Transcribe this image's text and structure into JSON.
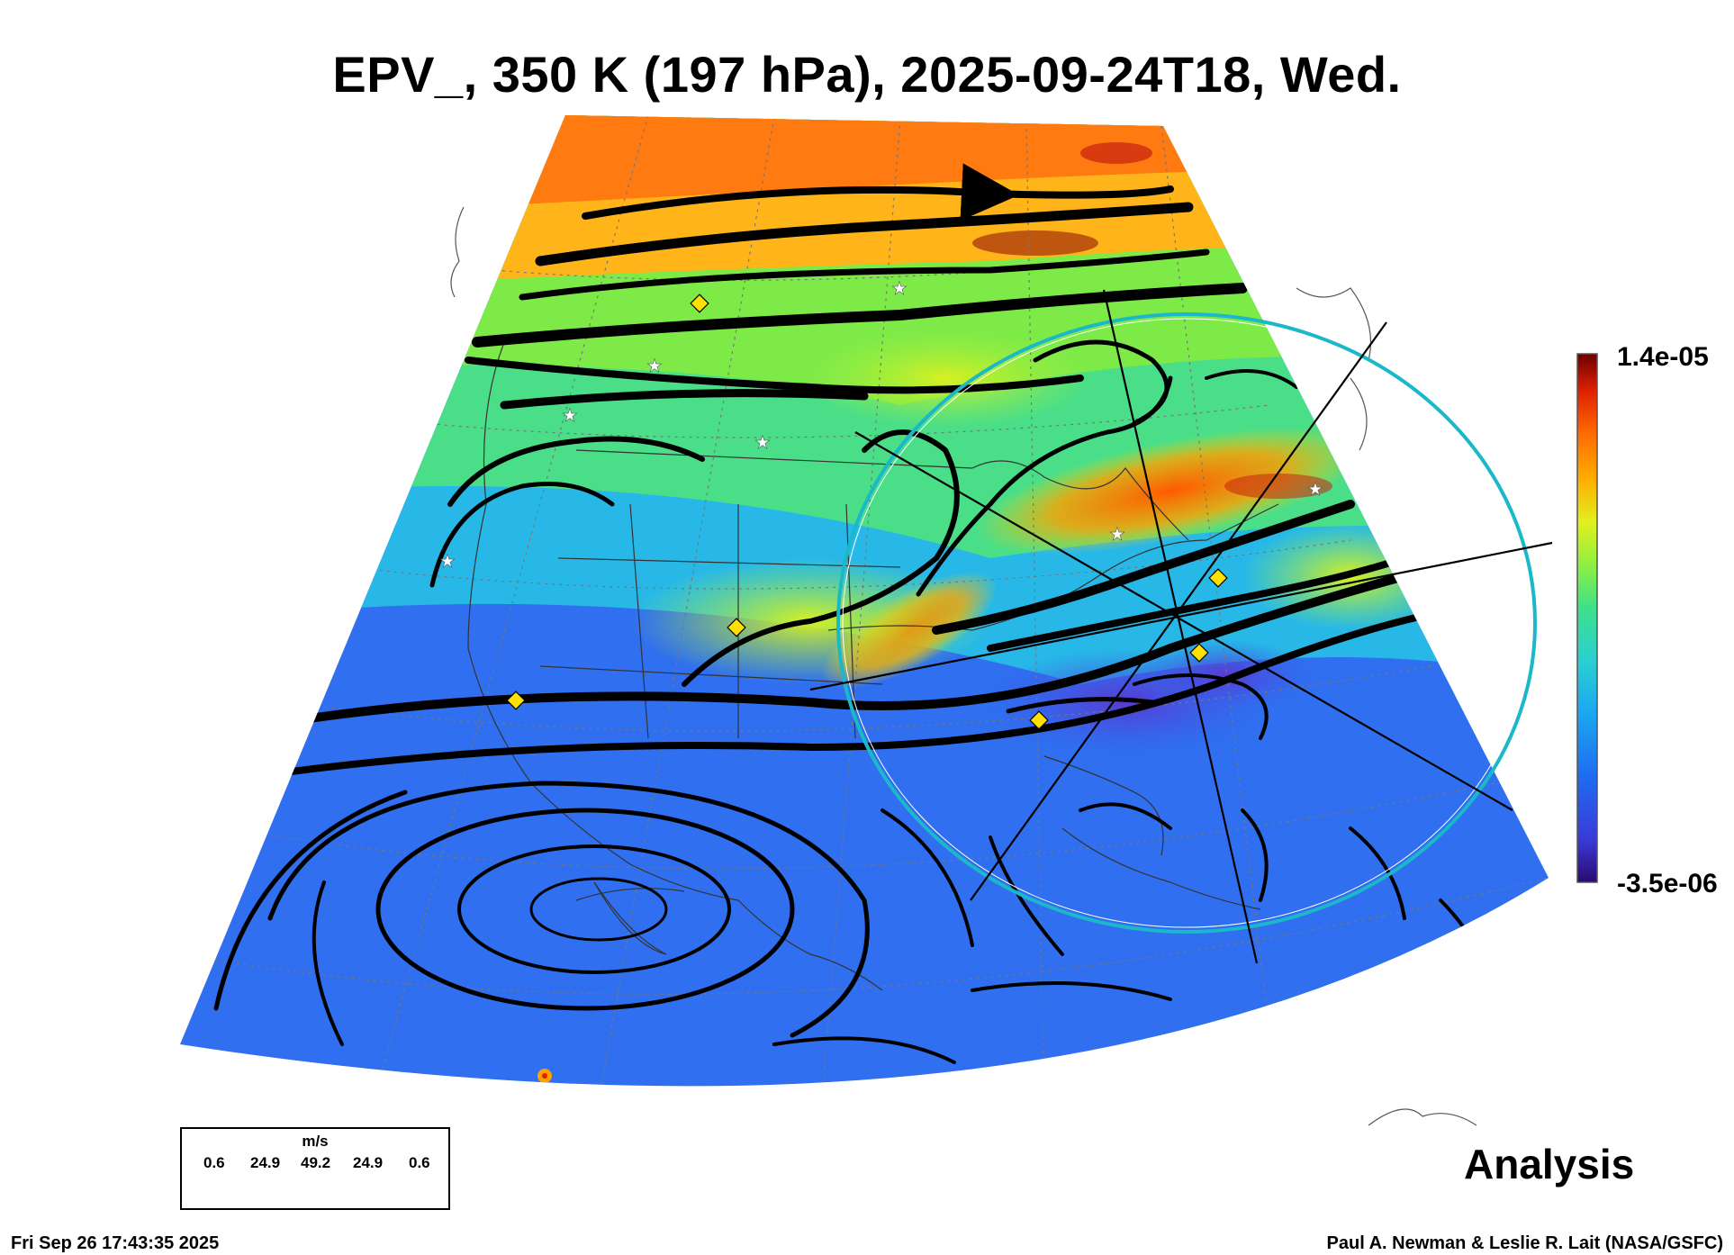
{
  "title": "EPV_, 350 K (197 hPa), 2025-09-24T18, Wed.",
  "colorbar": {
    "max_label": "1.4e-05",
    "min_label": "-3.5e-06",
    "colors": [
      "#2a0a6e",
      "#3a3ad8",
      "#1e6cf0",
      "#1aa8f0",
      "#2ad0d0",
      "#3fe08a",
      "#8ef040",
      "#e0f020",
      "#ffb000",
      "#ff6a00",
      "#e02000",
      "#6a0000"
    ]
  },
  "legend": {
    "units": "m/s",
    "values": [
      "0.6",
      "24.9",
      "49.2",
      "24.9",
      "0.6"
    ]
  },
  "corner_label": "Analysis",
  "footer": {
    "timestamp": "Fri Sep 26 17:43:35 2025",
    "credit": "Paul A. Newman & Leslie R. Lait (NASA/GSFC)"
  }
}
